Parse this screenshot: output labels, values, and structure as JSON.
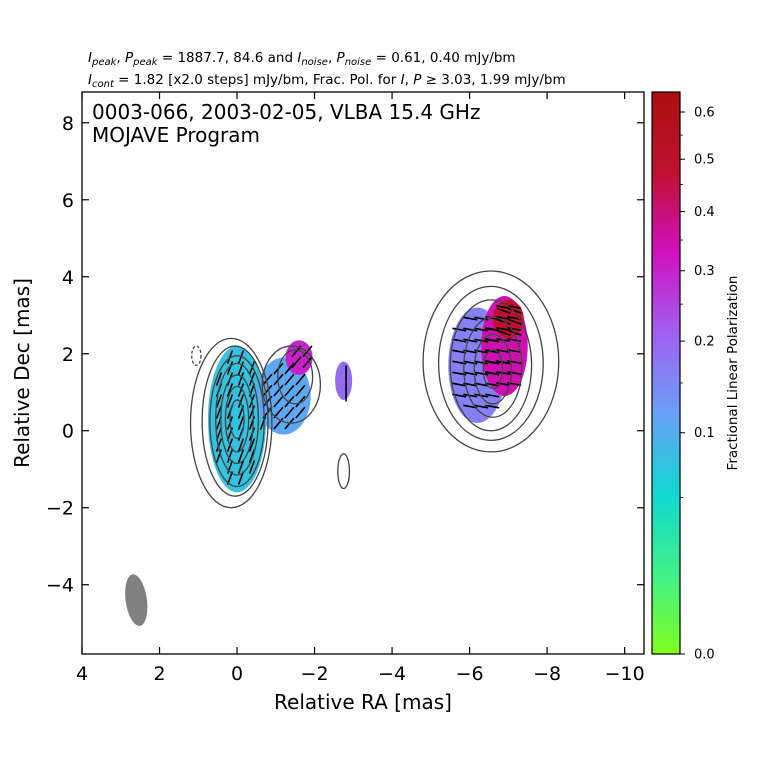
{
  "header": {
    "line1": {
      "i_peak": "I",
      "i_peak_sub": "peak",
      "sep1": ", ",
      "p_peak": "P",
      "p_peak_sub": "peak",
      "values1": " = 1887.7, 84.6 and ",
      "i_noise": "I",
      "i_noise_sub": "noise",
      "sep2": ", ",
      "p_noise": "P",
      "p_noise_sub": "noise",
      "values2": " = 0.61, 0.40 mJy/bm"
    },
    "line2": {
      "i_cont": "I",
      "i_cont_sub": "cont",
      "values1": " = 1.82 [x2.0 steps] mJy/bm, Frac. Pol. for ",
      "i": "I",
      "sep": ", ",
      "p": "P",
      "values2": " ≥ 3.03, 1.99 mJy/bm"
    }
  },
  "map_title": {
    "line1": "0003-066, 2003-02-05, VLBA 15.4 GHz",
    "line2": "MOJAVE Program"
  },
  "chart_data": {
    "type": "heatmap",
    "xlabel": "Relative RA [mas]",
    "ylabel": "Relative Dec [mas]",
    "xlim": [
      4,
      -10.5
    ],
    "ylim": [
      -5.8,
      8.8
    ],
    "x_ticks": [
      4,
      2,
      0,
      -2,
      -4,
      -6,
      -8,
      -10
    ],
    "x_tick_labels": [
      "4",
      "2",
      "0",
      "−2",
      "−4",
      "−6",
      "−8",
      "−10"
    ],
    "y_ticks": [
      -4,
      -2,
      0,
      2,
      4,
      6,
      8
    ],
    "y_tick_labels": [
      "−4",
      "−2",
      "0",
      "2",
      "4",
      "6",
      "8"
    ],
    "contour_base_mjy_per_beam": 1.82,
    "contour_step_factor": 2.0,
    "contours": [
      {
        "x": 0.15,
        "y": 0.2,
        "rx": 1.05,
        "ry": 2.2,
        "style": "solid"
      },
      {
        "x": 0.05,
        "y": 0.25,
        "rx": 0.85,
        "ry": 1.95,
        "style": "solid"
      },
      {
        "x": 0.0,
        "y": 0.25,
        "rx": 0.7,
        "ry": 1.7,
        "style": "solid"
      },
      {
        "x": 0.0,
        "y": 0.3,
        "rx": 0.55,
        "ry": 1.45,
        "style": "solid"
      },
      {
        "x": 0.0,
        "y": 0.3,
        "rx": 0.42,
        "ry": 1.15,
        "style": "solid"
      },
      {
        "x": 0.0,
        "y": 0.3,
        "rx": 0.3,
        "ry": 0.85,
        "style": "solid"
      },
      {
        "x": 0.0,
        "y": 0.3,
        "rx": 0.18,
        "ry": 0.5,
        "style": "solid"
      },
      {
        "x": -6.55,
        "y": 1.8,
        "rx": 1.75,
        "ry": 2.35,
        "style": "solid"
      },
      {
        "x": -6.55,
        "y": 1.75,
        "rx": 1.35,
        "ry": 2.0,
        "style": "solid"
      },
      {
        "x": -6.55,
        "y": 1.7,
        "rx": 1.05,
        "ry": 1.7,
        "style": "solid"
      },
      {
        "x": -6.6,
        "y": 1.65,
        "rx": 0.75,
        "ry": 1.3,
        "style": "solid"
      },
      {
        "x": -6.6,
        "y": 1.6,
        "rx": 0.48,
        "ry": 0.9,
        "style": "solid"
      },
      {
        "x": -6.6,
        "y": 1.6,
        "rx": 0.25,
        "ry": 0.5,
        "style": "solid"
      },
      {
        "x": -1.4,
        "y": 1.2,
        "rx": 0.75,
        "ry": 1.0,
        "style": "solid"
      },
      {
        "x": -1.5,
        "y": 1.4,
        "rx": 0.45,
        "ry": 0.7,
        "style": "solid"
      },
      {
        "x": -2.75,
        "y": -1.05,
        "rx": 0.15,
        "ry": 0.45,
        "style": "solid"
      },
      {
        "x": 1.05,
        "y": 1.95,
        "rx": 0.12,
        "ry": 0.25,
        "style": "dashed"
      }
    ],
    "fractional_polarization_pixels": [
      {
        "x": 0.0,
        "y": 0.3,
        "rx": 0.75,
        "ry": 1.9,
        "frac_pol": 0.07,
        "evpa_deg": 20
      },
      {
        "x": -1.2,
        "y": 0.9,
        "rx": 0.7,
        "ry": 1.0,
        "frac_pol": 0.1,
        "evpa_deg": 40
      },
      {
        "x": -1.6,
        "y": 1.9,
        "rx": 0.35,
        "ry": 0.45,
        "frac_pol": 0.28,
        "evpa_deg": 40
      },
      {
        "x": -2.75,
        "y": 1.3,
        "rx": 0.22,
        "ry": 0.5,
        "frac_pol": 0.18,
        "evpa_deg": 0
      },
      {
        "x": -6.2,
        "y": 1.7,
        "rx": 0.75,
        "ry": 1.5,
        "frac_pol": 0.15,
        "evpa_deg": 100
      },
      {
        "x": -6.9,
        "y": 2.2,
        "rx": 0.6,
        "ry": 1.3,
        "frac_pol": 0.32,
        "evpa_deg": 100
      },
      {
        "x": -7.0,
        "y": 2.9,
        "rx": 0.4,
        "ry": 0.5,
        "frac_pol": 0.45,
        "evpa_deg": 110
      }
    ],
    "beam": {
      "x": 2.6,
      "y": -4.4,
      "major_mas": 1.35,
      "minor_mas": 0.55,
      "pa_deg": -8,
      "color": "#808080"
    },
    "colorbar": {
      "label": "Fractional Linear Polarization",
      "min": 0.0,
      "max": 0.6,
      "ticks": [
        0.0,
        0.1,
        0.2,
        0.3,
        0.4,
        0.5,
        0.6
      ],
      "tick_labels": [
        "0.0",
        "0.1",
        "0.2",
        "0.3",
        "0.4",
        "0.5",
        "0.6"
      ],
      "scale": "sqrt",
      "colors": [
        "#80ff20",
        "#40f08a",
        "#10d8d0",
        "#6aa0f8",
        "#a060f0",
        "#d010c0",
        "#c01030",
        "#aa1010"
      ]
    }
  }
}
